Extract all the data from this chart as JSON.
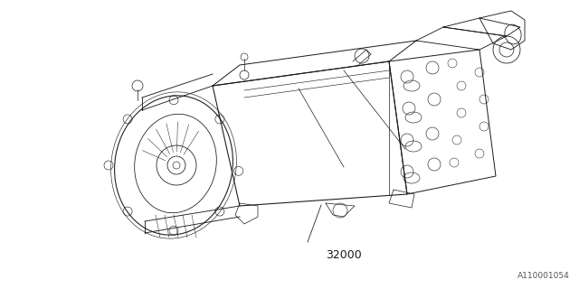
{
  "background_color": "#ffffff",
  "line_color": "#1a1a1a",
  "line_width": 0.7,
  "part_number": "32000",
  "doc_ref": "A110001054",
  "figsize": [
    6.4,
    3.2
  ],
  "dpi": 100
}
